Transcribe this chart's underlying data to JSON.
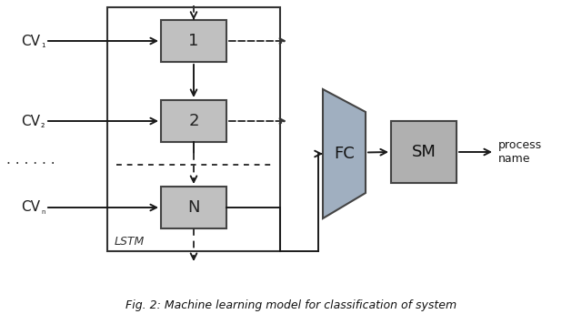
{
  "bg_color": "#ffffff",
  "box_color": "#c0c0c0",
  "box_edge_color": "#444444",
  "lstm_box_color": "#ffffff",
  "lstm_box_edge": "#333333",
  "fc_color": "#a0afc0",
  "sm_color": "#b0b0b0",
  "arrow_color": "#1a1a1a",
  "dashed_color": "#333333",
  "fig_caption": "Fig. 2: Machine learning model for classification of system",
  "lstm_label": "LSTM",
  "fc_label": "FC",
  "sm_label": "SM",
  "cv_labels": [
    "CV₁",
    "CV₂",
    "CVₙ"
  ],
  "node_labels": [
    "1",
    "2",
    "N"
  ],
  "output_label": "process\nname",
  "left_dots": "· · · · · ·",
  "mid_dots": "· · · · · · · · · · · ·"
}
